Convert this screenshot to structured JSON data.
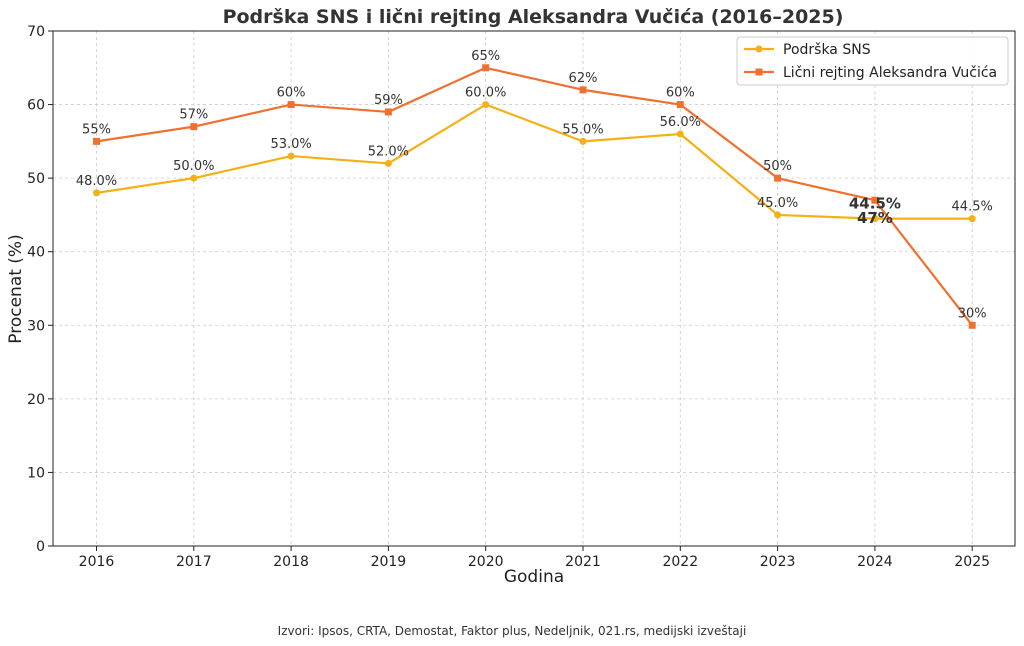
{
  "chart_data": {
    "type": "line",
    "title": "Podrška SNS i lični rejting Aleksandra Vučića (2016–2025)",
    "xlabel": "Godina",
    "ylabel": "Procenat (%)",
    "ylim": [
      0,
      70
    ],
    "yticks": [
      0,
      10,
      20,
      30,
      40,
      50,
      60,
      70
    ],
    "x": [
      2016,
      2017,
      2018,
      2019,
      2020,
      2021,
      2022,
      2023,
      2024,
      2025
    ],
    "grid": true,
    "legend_position": "top-right",
    "series": [
      {
        "name": "Podrška SNS",
        "color": "#f5b015",
        "marker": "circle",
        "values": [
          48.0,
          50.0,
          53.0,
          52.0,
          60.0,
          55.0,
          56.0,
          45.0,
          44.5,
          44.5
        ],
        "labels": [
          "48.0%",
          "50.0%",
          "53.0%",
          "52.0%",
          "60.0%",
          "55.0%",
          "56.0%",
          "45.0%",
          "44.5%",
          "44.5%"
        ]
      },
      {
        "name": "Lični rejting Aleksandra Vučića",
        "color": "#f07030",
        "marker": "square",
        "values": [
          55,
          57,
          60,
          59,
          65,
          62,
          60,
          50,
          47,
          30
        ],
        "labels": [
          "55%",
          "57%",
          "60%",
          "59%",
          "65%",
          "62%",
          "60%",
          "50%",
          "47%",
          "30%"
        ]
      }
    ],
    "source": "Izvori: Ipsos, CRTA, Demostat, Faktor plus, Nedeljnik, 021.rs, medijski izveštaji"
  }
}
